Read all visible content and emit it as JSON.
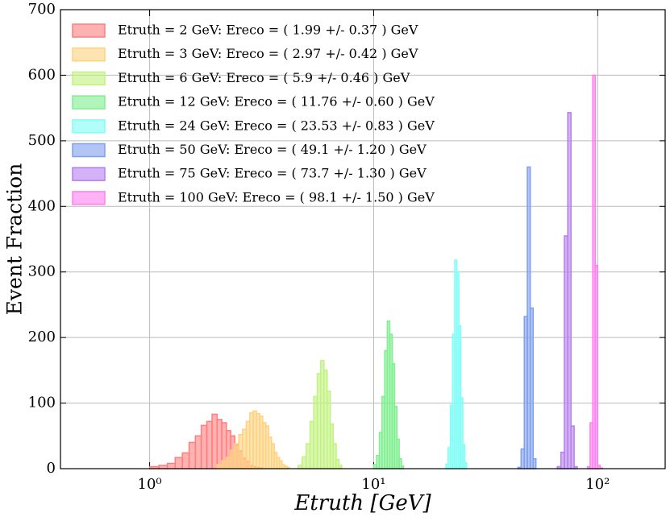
{
  "chart_data": {
    "type": "histogram",
    "xlabel": "Etruth [GeV]",
    "ylabel": "Event Fraction",
    "xscale": "log",
    "xlim": [
      0.4,
      200
    ],
    "ylim": [
      0,
      700
    ],
    "xticks": [
      {
        "value": 1,
        "label": "10⁰"
      },
      {
        "value": 10,
        "label": "10¹"
      },
      {
        "value": 100,
        "label": "10²"
      }
    ],
    "yticks": [
      0,
      100,
      200,
      300,
      400,
      500,
      600,
      700
    ],
    "grid": true,
    "legend": "upper left",
    "series": [
      {
        "name": "Etruth = 2 GeV: Ereco = ( 1.99 +/- 0.37 ) GeV",
        "color": "#ff7f7f",
        "bins": [
          1.0,
          1.1,
          1.2,
          1.3,
          1.4,
          1.5,
          1.6,
          1.7,
          1.8,
          1.9,
          2.0,
          2.1,
          2.2,
          2.3,
          2.4,
          2.5,
          2.6,
          2.7,
          2.8,
          2.9,
          3.0,
          3.1,
          3.2
        ],
        "values": [
          3,
          5,
          8,
          17,
          24,
          40,
          50,
          66,
          72,
          83,
          75,
          70,
          58,
          50,
          36,
          27,
          16,
          11,
          5,
          3,
          2,
          1
        ]
      },
      {
        "name": "Etruth = 3 GeV: Ereco = ( 2.97 +/- 0.42 ) GeV",
        "color": "#ffd27f",
        "bins": [
          2.0,
          2.1,
          2.2,
          2.3,
          2.4,
          2.5,
          2.6,
          2.7,
          2.8,
          2.9,
          3.0,
          3.1,
          3.2,
          3.3,
          3.4,
          3.5,
          3.6,
          3.7,
          3.8,
          3.9,
          4.0,
          4.1,
          4.2
        ],
        "values": [
          6,
          12,
          17,
          28,
          38,
          52,
          60,
          72,
          85,
          88,
          84,
          80,
          70,
          65,
          48,
          38,
          25,
          17,
          12,
          6,
          4,
          2
        ]
      },
      {
        "name": "Etruth = 6 GeV: Ereco = ( 5.9 +/- 0.46 ) GeV",
        "color": "#c2f27f",
        "bins": [
          4.6,
          4.8,
          5.0,
          5.2,
          5.4,
          5.6,
          5.8,
          6.0,
          6.2,
          6.4,
          6.6,
          6.8,
          7.0,
          7.2
        ],
        "values": [
          5,
          18,
          38,
          72,
          110,
          145,
          165,
          150,
          118,
          68,
          38,
          14,
          5
        ]
      },
      {
        "name": "Etruth = 12 GeV: Ereco = ( 11.76 +/- 0.60 ) GeV",
        "color": "#7fef8f",
        "bins": [
          10.0,
          10.3,
          10.6,
          10.9,
          11.2,
          11.5,
          11.8,
          12.1,
          12.4,
          12.7,
          13.0,
          13.3,
          13.6
        ],
        "values": [
          6,
          20,
          55,
          110,
          180,
          225,
          205,
          160,
          95,
          45,
          15,
          4
        ]
      },
      {
        "name": "Etruth = 24 GeV: Ereco = ( 23.53 +/- 0.83 ) GeV",
        "color": "#7ffff7",
        "bins": [
          21.0,
          21.5,
          22.0,
          22.5,
          23.0,
          23.5,
          24.0,
          24.5,
          25.0,
          25.5,
          26.0
        ],
        "values": [
          7,
          32,
          97,
          205,
          318,
          300,
          218,
          108,
          37,
          9
        ]
      },
      {
        "name": "Etruth = 50 GeV: Ereco = ( 49.1 +/- 1.20 ) GeV",
        "color": "#7f9fef",
        "bins": [
          44.0,
          45.5,
          47.0,
          48.5,
          50.0,
          51.5,
          53.0
        ],
        "values": [
          2,
          30,
          232,
          460,
          245,
          15
        ]
      },
      {
        "name": "Etruth = 75 GeV: Ereco = ( 73.7 +/- 1.30 ) GeV",
        "color": "#b57fef",
        "bins": [
          66.0,
          68.5,
          71.0,
          73.5,
          76.0,
          78.5,
          81.0
        ],
        "values": [
          3,
          25,
          355,
          543,
          65,
          3
        ]
      },
      {
        "name": "Etruth = 100 GeV: Ereco = ( 98.1 +/- 1.50 ) GeV",
        "color": "#ff7fef",
        "bins": [
          90.0,
          92.5,
          95.0,
          97.5,
          100.0,
          102.5,
          105.0
        ],
        "values": [
          3,
          70,
          600,
          310,
          5,
          1
        ]
      }
    ]
  }
}
